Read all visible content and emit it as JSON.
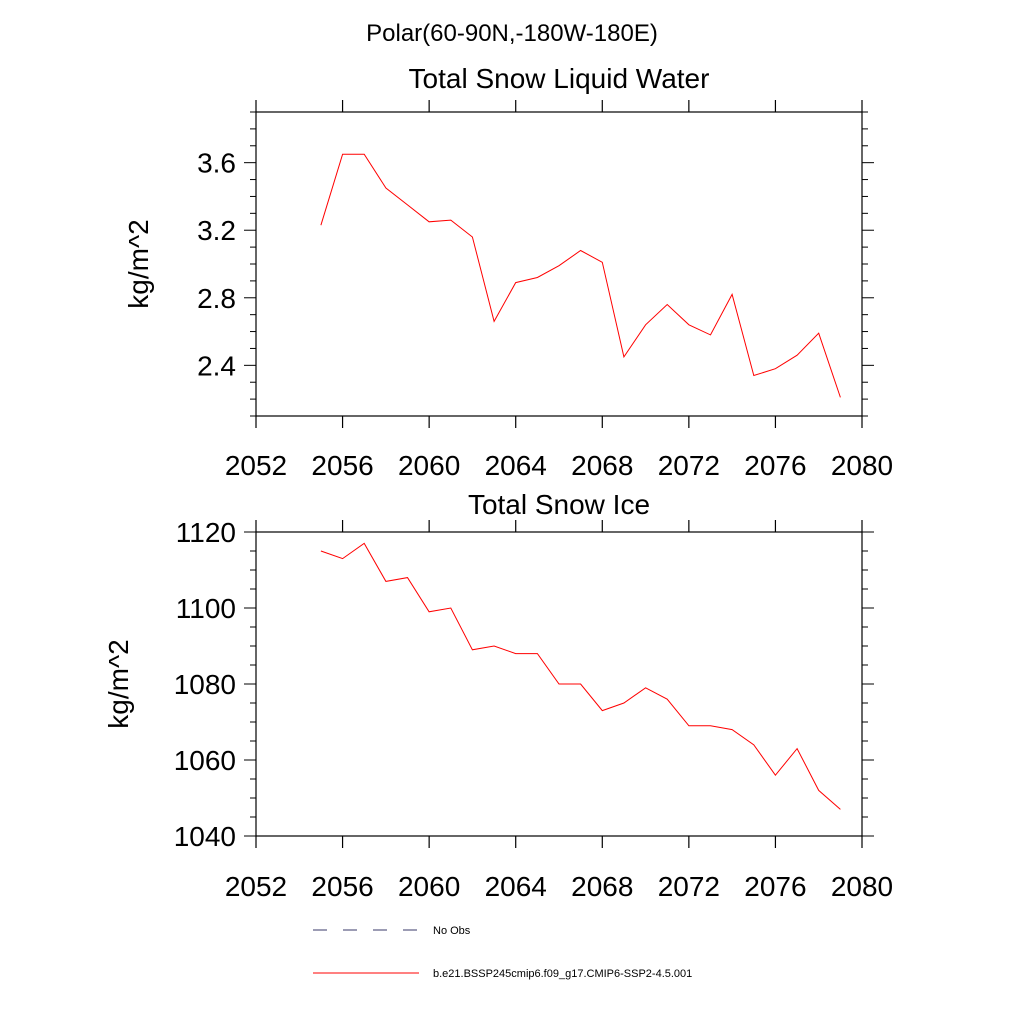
{
  "page": {
    "super_title": "Polar(60-90N,-180W-180E)"
  },
  "legend": {
    "entries": [
      {
        "label": "No Obs",
        "style": "dashed",
        "color": "#3a3a6a"
      },
      {
        "label": "b.e21.BSSP245cmip6.f09_g17.CMIP6-SSP2-4.5.001",
        "style": "solid",
        "color": "#ff0000"
      }
    ]
  },
  "chart_data": [
    {
      "type": "line",
      "title": "Total Snow Liquid Water",
      "xlabel": "",
      "ylabel": "kg/m^2",
      "xlim": [
        2052,
        2080
      ],
      "ylim": [
        2.1,
        3.9
      ],
      "xticks": [
        2052,
        2056,
        2060,
        2064,
        2068,
        2072,
        2076,
        2080
      ],
      "yticks": [
        2.4,
        2.8,
        3.2,
        3.6
      ],
      "ytick_labels": [
        "2.4",
        "2.8",
        "3.2",
        "3.6"
      ],
      "grid": false,
      "series": [
        {
          "color": "#ff0000",
          "x": [
            2055,
            2056,
            2057,
            2058,
            2059,
            2060,
            2061,
            2062,
            2063,
            2064,
            2065,
            2066,
            2067,
            2068,
            2069,
            2070,
            2071,
            2072,
            2073,
            2074,
            2075,
            2076,
            2077,
            2078,
            2079
          ],
          "y": [
            3.23,
            3.65,
            3.65,
            3.45,
            3.35,
            3.25,
            3.26,
            3.16,
            2.66,
            2.89,
            2.92,
            2.99,
            3.08,
            3.01,
            2.45,
            2.64,
            2.76,
            2.64,
            2.58,
            2.82,
            2.34,
            2.38,
            2.46,
            2.59,
            2.21
          ]
        }
      ]
    },
    {
      "type": "line",
      "title": "Total Snow Ice",
      "xlabel": "",
      "ylabel": "kg/m^2",
      "xlim": [
        2052,
        2080
      ],
      "ylim": [
        1040,
        1120
      ],
      "xticks": [
        2052,
        2056,
        2060,
        2064,
        2068,
        2072,
        2076,
        2080
      ],
      "yticks": [
        1040,
        1060,
        1080,
        1100,
        1120
      ],
      "ytick_labels": [
        "1040",
        "1060",
        "1080",
        "1100",
        "1120"
      ],
      "grid": false,
      "series": [
        {
          "color": "#ff0000",
          "x": [
            2055,
            2056,
            2057,
            2058,
            2059,
            2060,
            2061,
            2062,
            2063,
            2064,
            2065,
            2066,
            2067,
            2068,
            2069,
            2070,
            2071,
            2072,
            2073,
            2074,
            2075,
            2076,
            2077,
            2078,
            2079
          ],
          "y": [
            1115,
            1113,
            1117,
            1107,
            1108,
            1099,
            1100,
            1089,
            1090,
            1088,
            1088,
            1080,
            1080,
            1073,
            1075,
            1079,
            1076,
            1069,
            1069,
            1068,
            1064,
            1056,
            1063,
            1052,
            1047
          ]
        }
      ]
    }
  ]
}
